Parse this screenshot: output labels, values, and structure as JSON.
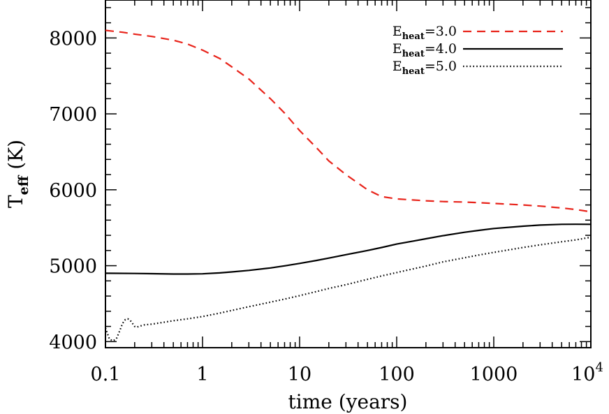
{
  "chart_data": {
    "type": "line",
    "xlabel": "time (years)",
    "ylabel": {
      "main": "T",
      "sub": "eff",
      "rest": " (K)"
    },
    "xscale": "log",
    "xlim": [
      0.1,
      10000
    ],
    "ylim": [
      3920,
      8500
    ],
    "xticks": [
      {
        "value": 0.1,
        "base": "0.1",
        "sup": ""
      },
      {
        "value": 1,
        "base": "1",
        "sup": ""
      },
      {
        "value": 10,
        "base": "10",
        "sup": ""
      },
      {
        "value": 100,
        "base": "100",
        "sup": ""
      },
      {
        "value": 1000,
        "base": "1000",
        "sup": ""
      },
      {
        "value": 10000,
        "base": "10",
        "sup": "4"
      }
    ],
    "yticks": [
      4000,
      5000,
      6000,
      7000,
      8000
    ],
    "grid": false,
    "legend_position": "top-right",
    "series": [
      {
        "name": "E_heat=3.0",
        "label": {
          "main": "E",
          "sub": "heat",
          "rest": "=3.0"
        },
        "color": "#e8231a",
        "dash": "dashed",
        "x": [
          0.1,
          0.15,
          0.2,
          0.3,
          0.5,
          0.7,
          1,
          1.5,
          2,
          3,
          5,
          7,
          10,
          15,
          20,
          30,
          50,
          70,
          100,
          150,
          200,
          300,
          500,
          700,
          1000,
          2000,
          3000,
          5000,
          7000,
          10000
        ],
        "y": [
          8100,
          8075,
          8050,
          8020,
          7970,
          7920,
          7840,
          7730,
          7620,
          7460,
          7200,
          7010,
          6780,
          6550,
          6380,
          6200,
          6000,
          5910,
          5880,
          5865,
          5855,
          5845,
          5838,
          5830,
          5820,
          5800,
          5785,
          5760,
          5740,
          5710
        ]
      },
      {
        "name": "E_heat=4.0",
        "label": {
          "main": "E",
          "sub": "heat",
          "rest": "=4.0"
        },
        "color": "#000000",
        "dash": "solid",
        "x": [
          0.1,
          0.2,
          0.3,
          0.5,
          0.7,
          1,
          1.5,
          2,
          3,
          5,
          7,
          10,
          15,
          20,
          30,
          50,
          70,
          100,
          150,
          200,
          300,
          500,
          700,
          1000,
          2000,
          3000,
          5000,
          7000,
          10000
        ],
        "y": [
          4900,
          4898,
          4895,
          4890,
          4890,
          4893,
          4905,
          4918,
          4938,
          4970,
          4998,
          5030,
          5070,
          5100,
          5145,
          5200,
          5240,
          5285,
          5325,
          5355,
          5395,
          5440,
          5465,
          5490,
          5520,
          5535,
          5545,
          5546,
          5545
        ]
      },
      {
        "name": "E_heat=5.0",
        "label": {
          "main": "E",
          "sub": "heat",
          "rest": "=5.0"
        },
        "color": "#000000",
        "dash": "dotted",
        "x": [
          0.1,
          0.11,
          0.12,
          0.13,
          0.14,
          0.15,
          0.16,
          0.17,
          0.18,
          0.19,
          0.2,
          0.21,
          0.22,
          0.25,
          0.3,
          0.4,
          0.5,
          0.7,
          1,
          1.5,
          2,
          3,
          5,
          7,
          10,
          15,
          20,
          30,
          50,
          70,
          100,
          150,
          200,
          300,
          500,
          700,
          1000,
          2000,
          3000,
          5000,
          7000,
          10000
        ],
        "y": [
          4180,
          4030,
          4010,
          4040,
          4140,
          4240,
          4290,
          4300,
          4280,
          4240,
          4200,
          4190,
          4200,
          4220,
          4230,
          4255,
          4275,
          4300,
          4330,
          4375,
          4410,
          4460,
          4520,
          4560,
          4605,
          4660,
          4700,
          4750,
          4820,
          4865,
          4910,
          4960,
          4995,
          5050,
          5105,
          5140,
          5175,
          5240,
          5275,
          5315,
          5340,
          5375
        ]
      }
    ]
  }
}
